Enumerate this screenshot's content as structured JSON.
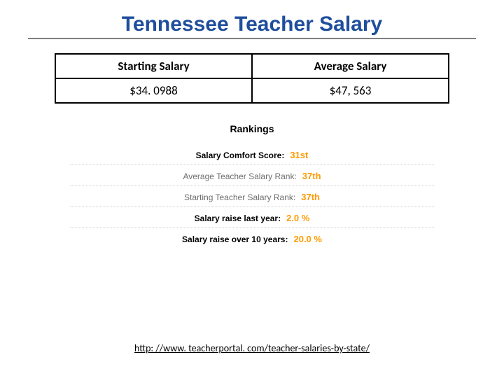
{
  "title": "Tennessee Teacher Salary",
  "colors": {
    "title": "#1f4e9c",
    "underline": "#7f7f7f",
    "border": "#000000",
    "rank_value": "#ff9a00",
    "dotted_divider": "#cfcfcf",
    "sub_label": "#6d6d6d",
    "background": "#ffffff",
    "text": "#000000"
  },
  "salary_table": {
    "columns": [
      "Starting Salary",
      "Average Salary"
    ],
    "row": [
      "$34. 0988",
      "$47, 563"
    ]
  },
  "rankings": {
    "heading": "Rankings",
    "items": [
      {
        "label": "Salary Comfort Score:",
        "value": "31st",
        "emphasis": "bold"
      },
      {
        "label": "Average Teacher Salary Rank:",
        "value": "37th",
        "emphasis": "sub"
      },
      {
        "label": "Starting Teacher Salary Rank:",
        "value": "37th",
        "emphasis": "sub"
      },
      {
        "label": "Salary raise last year:",
        "value": "2.0 %",
        "emphasis": "bold"
      },
      {
        "label": "Salary raise over 10 years:",
        "value": "20.0 %",
        "emphasis": "bold"
      }
    ]
  },
  "source": "http: //www. teacherportal. com/teacher-salaries-by-state/"
}
